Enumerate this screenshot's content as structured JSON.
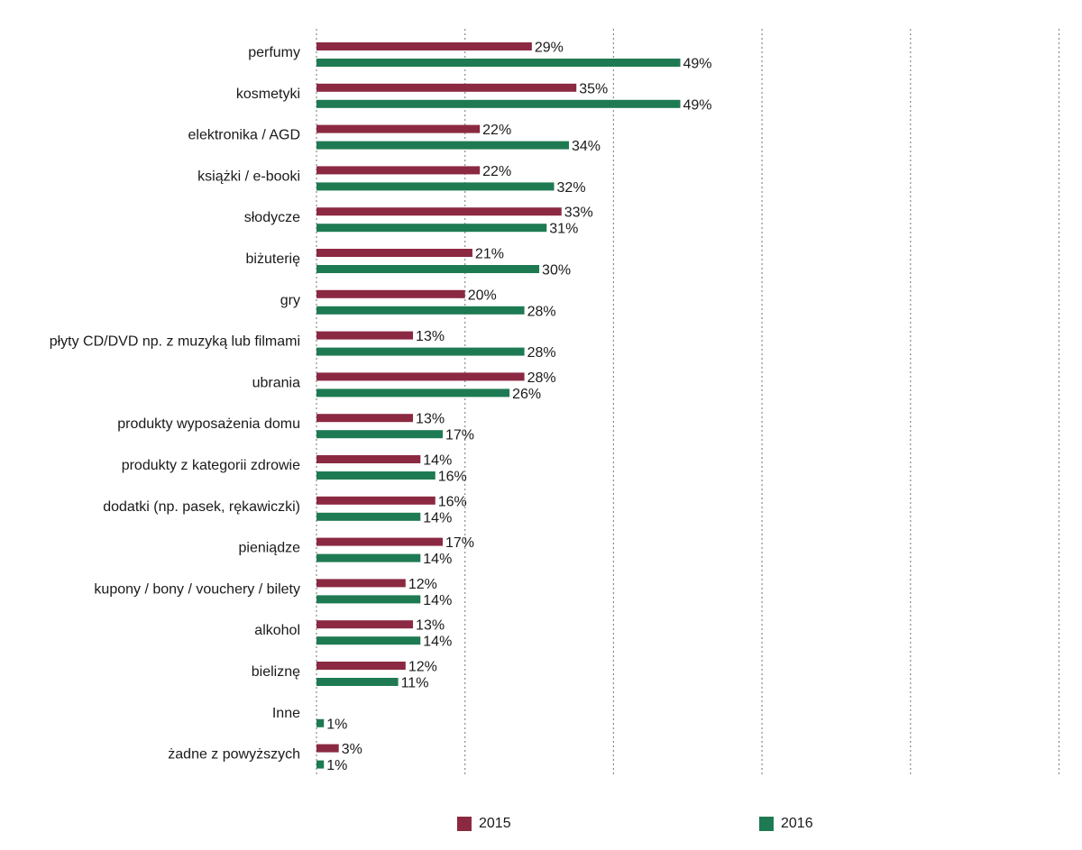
{
  "chart_data": {
    "type": "bar",
    "orientation": "horizontal",
    "categories": [
      "perfumy",
      "kosmetyki",
      "elektronika / AGD",
      "książki / e-booki",
      "słodycze",
      "biżuterię",
      "gry",
      "płyty CD/DVD np. z muzyką lub filmami",
      "ubrania",
      "produkty wyposażenia domu",
      "produkty z kategorii zdrowie",
      "dodatki (np. pasek, rękawiczki)",
      "pieniądze",
      "kupony / bony / vouchery / bilety",
      "alkohol",
      "bieliznę",
      "Inne",
      "żadne z powyższych"
    ],
    "series": [
      {
        "name": "2015",
        "color": "#8b2942",
        "values": [
          29,
          35,
          22,
          22,
          33,
          21,
          20,
          13,
          28,
          13,
          14,
          16,
          17,
          12,
          13,
          12,
          null,
          3
        ],
        "labels": [
          "29%",
          "35%",
          "22%",
          "22%",
          "33%",
          "21%",
          "20%",
          "13%",
          "28%",
          "13%",
          "14%",
          "16%",
          "17%",
          "12%",
          "13%",
          "12%",
          "",
          "3%"
        ]
      },
      {
        "name": "2016",
        "color": "#1e7a52",
        "values": [
          49,
          49,
          34,
          32,
          31,
          30,
          28,
          28,
          26,
          17,
          16,
          14,
          14,
          14,
          14,
          11,
          1,
          1
        ],
        "labels": [
          "49%",
          "49%",
          "34%",
          "32%",
          "31%",
          "30%",
          "28%",
          "28%",
          "26%",
          "17%",
          "16%",
          "14%",
          "14%",
          "14%",
          "14%",
          "11%",
          "1%",
          "1%"
        ]
      }
    ],
    "xlim": [
      0,
      100
    ],
    "grid": true,
    "legend": "bottom"
  },
  "legend": {
    "label_2015": "2015",
    "label_2016": "2016",
    "color_2015": "#8b2942",
    "color_2016": "#1e7a52"
  }
}
